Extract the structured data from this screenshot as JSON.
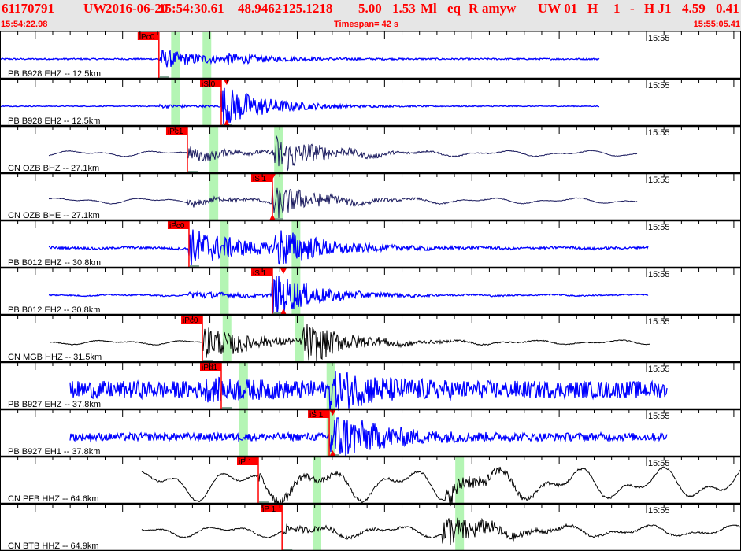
{
  "header": {
    "event_id": "61170791",
    "network": "UW",
    "date": "2016-06-20",
    "origin_time": "15:54:30.61",
    "latitude": "48.9462",
    "longitude": "-125.1218",
    "depth": "5.00",
    "magnitude": "1.53",
    "mag_type": "Ml",
    "event_type": "eq",
    "review": "R",
    "analyst": "amyw",
    "source": "UW 01",
    "field_h": "H",
    "field_1": "1",
    "dash": "-",
    "field_hj1": "H J1",
    "value_a": "4.59",
    "value_b": "0.41",
    "start_time": "15:54:22.98",
    "timespan": "Timespan=  42 s",
    "end_time": "15:55:05.41"
  },
  "time_axis": {
    "span_s": 42.43,
    "minute_mark_label": "15:55",
    "minute_mark_s": 37.02
  },
  "colors": {
    "pick": "#ff0000",
    "window": "#b4f5b4",
    "blue": "#0000ff",
    "navy": "#1a1a5e",
    "black": "#000000"
  },
  "traces": [
    {
      "label": "PB B928 EHZ -- 12.5km",
      "color": "#0000ff",
      "data_start_s": 0,
      "data_end_s": 34.3,
      "windows_s": [
        9.8,
        11.6
      ],
      "picks": [
        {
          "label": "iPc0",
          "time_s": 9.1
        }
      ]
    },
    {
      "label": "PB B928 EH2 -- 12.5km",
      "color": "#0000ff",
      "data_start_s": 0,
      "data_end_s": 34.3,
      "windows_s": [
        9.8,
        11.6
      ],
      "picks": [
        {
          "label": "iS 0",
          "time_s": 12.67,
          "triangle_s": 12.98
        }
      ]
    },
    {
      "label": "CN OZB BHZ -- 27.1km",
      "color": "#1a1a5e",
      "data_start_s": 2.8,
      "data_end_s": 36.5,
      "windows_s": [
        12.0,
        15.7
      ],
      "picks": [
        {
          "label": "iPc1",
          "time_s": 10.73
        }
      ]
    },
    {
      "label": "CN OZB BHE -- 27.1km",
      "color": "#1a1a5e",
      "data_start_s": 2.8,
      "data_end_s": 36.5,
      "windows_s": [
        12.0,
        15.7
      ],
      "picks": [
        {
          "label": "iS 1",
          "time_s": 15.6,
          "triangle_s": 15.6
        }
      ]
    },
    {
      "label": "PB B012 EHZ -- 30.8km",
      "color": "#0000ff",
      "data_start_s": 2.8,
      "data_end_s": 37.1,
      "windows_s": [
        12.6,
        16.7
      ],
      "picks": [
        {
          "label": "iPc0",
          "time_s": 10.82
        }
      ]
    },
    {
      "label": "PB B012 EH2 -- 30.8km",
      "color": "#0000ff",
      "data_start_s": 2.8,
      "data_end_s": 37.1,
      "windows_s": [
        12.6,
        16.7
      ],
      "picks": [
        {
          "label": "iS 1",
          "time_s": 15.6,
          "triangle_s": 16.23
        }
      ]
    },
    {
      "label": "CN MGB HHZ -- 31.5km",
      "color": "#000000",
      "data_start_s": 2.9,
      "data_end_s": 37.2,
      "windows_s": [
        12.75,
        16.9
      ],
      "picks": [
        {
          "label": "iPc0",
          "time_s": 11.59
        }
      ]
    },
    {
      "label": "PB B927 EHZ -- 37.8km",
      "color": "#0000ff",
      "data_start_s": 4.0,
      "data_end_s": 38.2,
      "windows_s": [
        13.7,
        18.7
      ],
      "picks": [
        {
          "label": "iPd1",
          "time_s": 12.67
        }
      ]
    },
    {
      "label": "PB B927 EH1 -- 37.8km",
      "color": "#0000ff",
      "data_start_s": 4.0,
      "data_end_s": 38.2,
      "windows_s": [
        13.7,
        18.7
      ],
      "picks": [
        {
          "label": "iS 1",
          "time_s": 18.85,
          "triangle_s": 19.05
        }
      ]
    },
    {
      "label": "CN PFB HHZ -- 64.6km",
      "color": "#000000",
      "data_start_s": 8.1,
      "data_end_s": 42.43,
      "windows_s": [
        17.9,
        26.07
      ],
      "picks": [
        {
          "label": "iP 1",
          "time_s": 14.79
        }
      ]
    },
    {
      "label": "CN BTB HHZ -- 64.9km",
      "color": "#000000",
      "data_start_s": 8.1,
      "data_end_s": 42.43,
      "windows_s": [
        17.9,
        26.07
      ],
      "picks": [
        {
          "label": "iP 1",
          "time_s": 16.15
        }
      ]
    }
  ]
}
